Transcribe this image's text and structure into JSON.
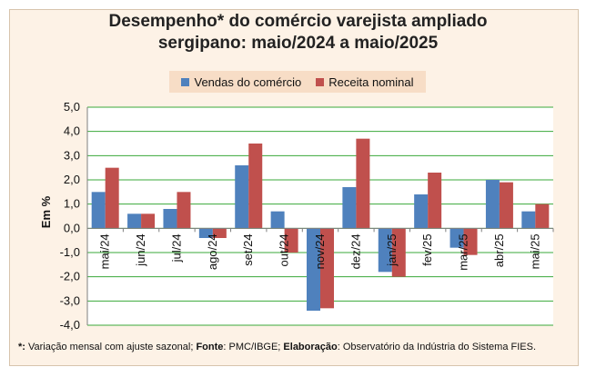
{
  "chart_data": {
    "type": "bar",
    "title": "Desempenho* do comércio varejista ampliado sergipano: maio/2024 a maio/2025",
    "title_lines": [
      "Desempenho* do comércio varejista ampliado",
      "sergipano: maio/2024 a maio/2025"
    ],
    "ylabel": "Em %",
    "xlabel": "",
    "ylim": [
      -4.0,
      5.0
    ],
    "ytick_step": 1.0,
    "yticks": [
      "5,0",
      "4,0",
      "3,0",
      "2,0",
      "1,0",
      "0,0",
      "-1,0",
      "-2,0",
      "-3,0",
      "-4,0"
    ],
    "grid": true,
    "legend_position": "top",
    "categories": [
      "mai/24",
      "jun/24",
      "jul/24",
      "ago/24",
      "set/24",
      "out/24",
      "nov/24",
      "dez/24",
      "jan/25",
      "fev/25",
      "mar/25",
      "abr/25",
      "mai/25"
    ],
    "series": [
      {
        "name": "Vendas do comércio",
        "color": "#4f81bd",
        "values": [
          1.5,
          0.6,
          0.8,
          -0.4,
          2.6,
          0.7,
          -3.4,
          1.7,
          -1.8,
          1.4,
          -0.8,
          2.0,
          0.7
        ]
      },
      {
        "name": "Receita nominal",
        "color": "#c0504d",
        "values": [
          2.5,
          0.6,
          1.5,
          -0.4,
          3.5,
          -1.0,
          -3.3,
          3.7,
          -2.0,
          2.3,
          -1.1,
          1.9,
          1.0
        ]
      }
    ]
  },
  "footnote": {
    "star_label": "*:",
    "star_text": " Variação mensal com ajuste sazonal; ",
    "fonte_label": "Fonte",
    "fonte_text": ": PMC/IBGE; ",
    "elab_label": "Elaboração",
    "elab_text": ": Observatório da Indústria do Sistema FIES."
  },
  "colors": {
    "background": "#fdf2e6",
    "plot_background": "#ffffff",
    "gridline": "#3aa83a",
    "legend_background": "#f7ddc6"
  }
}
